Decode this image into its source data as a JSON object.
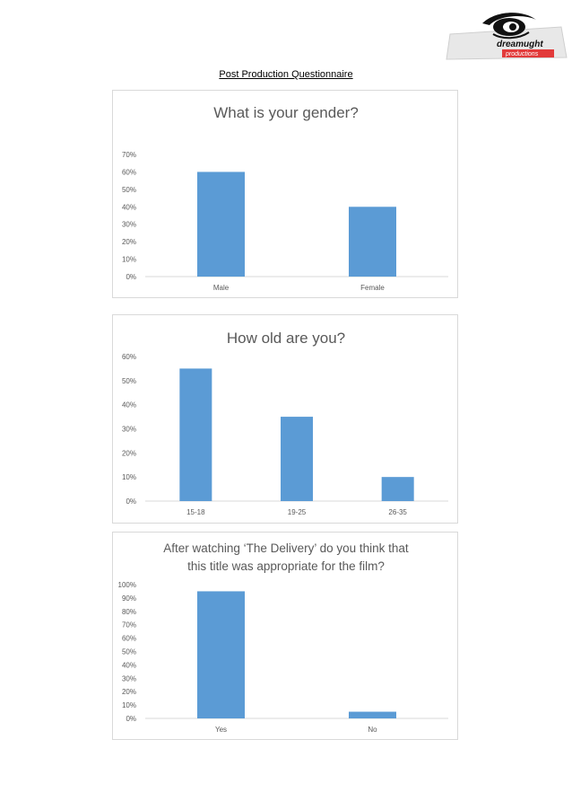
{
  "document": {
    "title": "Post Production Questionnaire",
    "logo": {
      "line1": "dreamught",
      "line2": "productions"
    }
  },
  "chart_data": [
    {
      "type": "bar",
      "title": [
        "What is your gender?"
      ],
      "categories": [
        "Male",
        "Female"
      ],
      "values": [
        60,
        40
      ],
      "ylim": [
        0,
        70
      ],
      "yticks": [
        "0%",
        "10%",
        "20%",
        "30%",
        "40%",
        "50%",
        "60%",
        "70%"
      ],
      "grid": false,
      "color": "#5b9bd5"
    },
    {
      "type": "bar",
      "title": [
        "How old are you?"
      ],
      "categories": [
        "15-18",
        "19-25",
        "26-35"
      ],
      "values": [
        55,
        35,
        10
      ],
      "ylim": [
        0,
        60
      ],
      "yticks": [
        "0%",
        "10%",
        "20%",
        "30%",
        "40%",
        "50%",
        "60%"
      ],
      "grid": false,
      "color": "#5b9bd5"
    },
    {
      "type": "bar",
      "title": [
        "After watching ‘The Delivery’ do you think that",
        "this title was appropriate for the film?"
      ],
      "categories": [
        "Yes",
        "No"
      ],
      "values": [
        95,
        5
      ],
      "ylim": [
        0,
        100
      ],
      "yticks": [
        "0%",
        "10%",
        "20%",
        "30%",
        "40%",
        "50%",
        "60%",
        "70%",
        "80%",
        "90%",
        "100%"
      ],
      "grid": false,
      "color": "#5b9bd5"
    }
  ]
}
